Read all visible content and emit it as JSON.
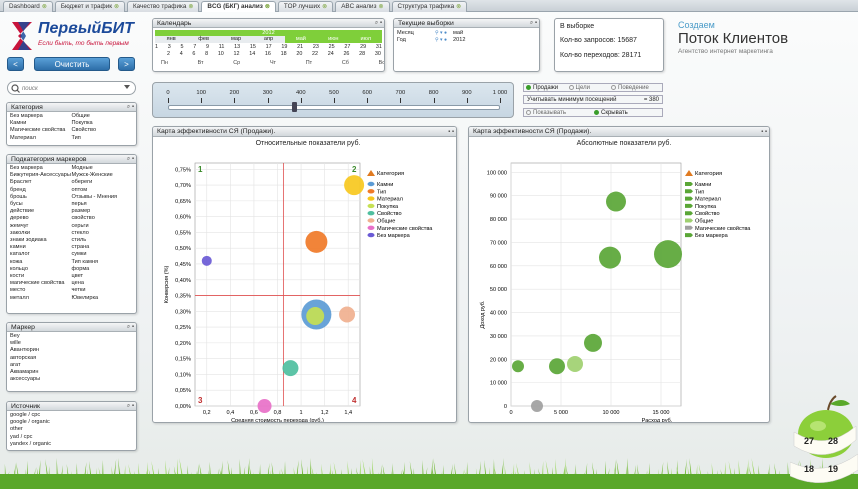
{
  "tabs": [
    {
      "label": "Dashboard",
      "active": false
    },
    {
      "label": "Бюджет и трафик",
      "active": false
    },
    {
      "label": "Качество трафика",
      "active": false
    },
    {
      "label": "BCG (БКГ) анализ",
      "active": true
    },
    {
      "label": "TOP лучших",
      "active": false
    },
    {
      "label": "ABC анализ",
      "active": false
    },
    {
      "label": "Структура трафика",
      "active": false
    }
  ],
  "logo": {
    "name": "ПервыйБИТ",
    "slogan": "Если быть, то быть первым"
  },
  "nav": {
    "prev": "<",
    "clear": "Очистить",
    "next": ">"
  },
  "search": {
    "placeholder": "поиск"
  },
  "category": {
    "title": "Категория",
    "items": [
      "Без маркера",
      "Общие",
      "Камни",
      "Покупка",
      "Магические свойства",
      "Свойство",
      "Материал",
      "Тип"
    ]
  },
  "subcategory": {
    "title": "Подкатегория маркеров",
    "items": [
      "Без маркера",
      "Модные",
      "Бижутерия-Аксессуары",
      "Мужск-Женские",
      "Браслет",
      "обереги",
      "бренд",
      "оптом",
      "брошь",
      "Отзывы - Мнения",
      "бусы",
      "перья",
      "действие",
      "размер",
      "дерево",
      "свойство",
      "жемчуг",
      "серьги",
      "заколки",
      "стекло",
      "знаки зодиака",
      "стиль",
      "камни",
      "страна",
      "каталог",
      "сумки",
      "кожа",
      "Тип камня",
      "кольцо",
      "форма",
      "кости",
      "цвет",
      "магические свойства",
      "цена",
      "место",
      "четки",
      "металл",
      "Ювелирка"
    ]
  },
  "marker": {
    "title": "Маркер",
    "items": [
      "Bey",
      "wille",
      "Авантюрин",
      "авторская",
      "агат",
      "Аквамарин",
      "аксессуары"
    ]
  },
  "sources": {
    "title": "Источник",
    "items": [
      "google / cpc",
      "google / organic",
      "other",
      "yad / cpc",
      "yandex / organic"
    ]
  },
  "calendar": {
    "title": "Календарь",
    "year": "2012",
    "months": [
      "янв",
      "фев",
      "мар",
      "апр",
      "май",
      "июн",
      "июл"
    ],
    "highlight_months": [
      "май",
      "июн",
      "июл"
    ],
    "rows": [
      [
        "1",
        "3",
        "5",
        "7",
        "9",
        "11",
        "13",
        "15",
        "17",
        "19",
        "21",
        "23",
        "25",
        "27",
        "29",
        "31"
      ],
      [
        "2",
        "4",
        "6",
        "8",
        "10",
        "12",
        "14",
        "16",
        "18",
        "20",
        "22",
        "24",
        "26",
        "28",
        "30"
      ]
    ],
    "weekdays": [
      "Пн",
      "Вт",
      "Ср",
      "Чт",
      "Пт",
      "Сб",
      "Вс"
    ]
  },
  "current": {
    "title": "Текущие выборки",
    "rows": [
      {
        "label": "Месяц",
        "value": "май"
      },
      {
        "label": "Год",
        "value": "2012"
      }
    ]
  },
  "stats": {
    "title": "В выборке",
    "requests_label": "Кол-во запросов:",
    "requests": "15687",
    "visits_label": "Кол-во переходов:",
    "visits": "28171"
  },
  "brand": {
    "small": "Создаем",
    "big": "Поток Клиентов",
    "sub": "Агентство интернет маркетинга"
  },
  "slider": {
    "ticks": [
      "0",
      "100",
      "200",
      "300",
      "400",
      "500",
      "600",
      "700",
      "800",
      "900",
      "1 000"
    ],
    "value": 380
  },
  "modes": {
    "sales": "Продажи",
    "goals": "Цели",
    "behavior": "Поведение",
    "min_visits_label": "Учитывать минимум посещений",
    "min_visits": "380",
    "show": "Показывать",
    "hide": "Скрывать"
  },
  "left_chart": {
    "panel_title": "Карта эффективности СЯ (Продажи).",
    "chart_data": {
      "type": "scatter",
      "title": "Относительные показатели руб.",
      "xlabel": "Средняя стоимость перехода (руб.)",
      "ylabel": "Конверсия (%)",
      "xlim": [
        0.1,
        1.5
      ],
      "ylim": [
        0,
        0.77
      ],
      "xticks": [
        "0,2",
        "0,4",
        "0,6",
        "0,8",
        "1",
        "1,2",
        "1,4"
      ],
      "yticks": [
        "0,00%",
        "0,05%",
        "0,10%",
        "0,15%",
        "0,20%",
        "0,25%",
        "0,30%",
        "0,35%",
        "0,40%",
        "0,45%",
        "0,50%",
        "0,55%",
        "0,60%",
        "0,65%",
        "0,70%",
        "0,75%"
      ],
      "ref_x": 0.85,
      "ref_y": 0.35,
      "quadrants": [
        "1",
        "2",
        "3",
        "4"
      ],
      "legend_title": "Категория",
      "series": [
        {
          "name": "Камни",
          "color": "#5b9bd5",
          "x": 1.13,
          "y": 0.29,
          "r": 15
        },
        {
          "name": "Тип",
          "color": "#f07a28",
          "x": 1.13,
          "y": 0.52,
          "r": 11
        },
        {
          "name": "Материал",
          "color": "#f7c81e",
          "x": 1.45,
          "y": 0.7,
          "r": 10
        },
        {
          "name": "Покупка",
          "color": "#c6e054",
          "x": 1.12,
          "y": 0.285,
          "r": 9
        },
        {
          "name": "Свойство",
          "color": "#4fbf9f",
          "x": 0.91,
          "y": 0.12,
          "r": 8
        },
        {
          "name": "Общие",
          "color": "#f0b08f",
          "x": 1.39,
          "y": 0.29,
          "r": 8
        },
        {
          "name": "Магические свойства",
          "color": "#e870c8",
          "x": 0.69,
          "y": 0.0,
          "r": 7
        },
        {
          "name": "Без маркера",
          "color": "#6a5ad5",
          "x": 0.2,
          "y": 0.46,
          "r": 5
        }
      ]
    }
  },
  "right_chart": {
    "panel_title": "Карта эффективности СЯ (Продажи).",
    "chart_data": {
      "type": "scatter",
      "title": "Абсолютные показатели руб.",
      "xlabel": "Расход руб.",
      "ylabel": "Доход руб.",
      "xlim": [
        0,
        17000
      ],
      "ylim": [
        0,
        104000
      ],
      "xticks": [
        {
          "v": 0,
          "t": "0"
        },
        {
          "v": 5000,
          "t": "5 000"
        },
        {
          "v": 10000,
          "t": "10 000"
        },
        {
          "v": 15000,
          "t": "15 000"
        }
      ],
      "yticks": [
        "0",
        "10 000",
        "20 000",
        "30 000",
        "40 000",
        "50 000",
        "60 000",
        "70 000",
        "80 000",
        "90 000",
        "100 000"
      ],
      "legend_title": "Категория",
      "series": [
        {
          "name": "Камни",
          "color": "#5aa636",
          "x": 15700,
          "y": 65000,
          "r": 14
        },
        {
          "name": "Тип",
          "color": "#5aa636",
          "x": 9900,
          "y": 63500,
          "r": 11
        },
        {
          "name": "Материал",
          "color": "#5aa636",
          "x": 10500,
          "y": 87500,
          "r": 10
        },
        {
          "name": "Покупка",
          "color": "#5aa636",
          "x": 8200,
          "y": 27000,
          "r": 9
        },
        {
          "name": "Свойство",
          "color": "#5aa636",
          "x": 4600,
          "y": 17000,
          "r": 8
        },
        {
          "name": "Общие",
          "color": "#9fd070",
          "x": 6400,
          "y": 18000,
          "r": 8
        },
        {
          "name": "Магические свойства",
          "color": "#a0a0a0",
          "x": 2600,
          "y": 0,
          "r": 6
        },
        {
          "name": "Без маркера",
          "color": "#5aa636",
          "x": 700,
          "y": 17000,
          "r": 6
        }
      ]
    }
  },
  "apple_numbers": [
    "27",
    "28",
    "18",
    "19"
  ]
}
